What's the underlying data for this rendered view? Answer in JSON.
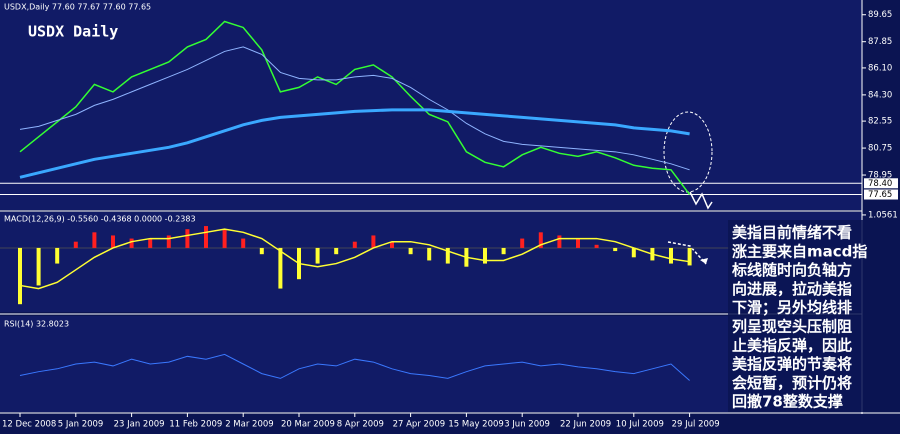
{
  "chart_data": [
    {
      "type": "line",
      "title": "USDX Daily",
      "header": "USDX,Daily 77.60 77.67 77.60 77.65",
      "categories": [
        "12 Dec 2008",
        null,
        null,
        "5 Jan 2009",
        null,
        null,
        "23 Jan 2009",
        null,
        null,
        "11 Feb 2009",
        null,
        null,
        "2 Mar 2009",
        null,
        null,
        "20 Mar 2009",
        null,
        null,
        "8 Apr 2009",
        null,
        null,
        "27 Apr 2009",
        null,
        null,
        "15 May 2009",
        null,
        null,
        "3 Jun 2009",
        null,
        null,
        "22 Jun 2009",
        null,
        null,
        "10 Jul 2009",
        null,
        null,
        "29 Jul 2009"
      ],
      "series": [
        {
          "color": "#33ff33",
          "values": [
            80.5,
            81.5,
            82.5,
            83.5,
            85.0,
            84.5,
            85.5,
            86.0,
            86.5,
            87.5,
            88.0,
            89.2,
            88.8,
            87.3,
            84.5,
            84.8,
            85.5,
            85.0,
            86.0,
            86.3,
            85.5,
            84.2,
            83.0,
            82.5,
            80.5,
            79.8,
            79.5,
            80.3,
            80.8,
            80.4,
            80.2,
            80.5,
            80.1,
            79.6,
            79.4,
            79.3,
            77.65
          ]
        },
        {
          "color": "#8fb4ff",
          "values": [
            82.0,
            82.2,
            82.6,
            83.0,
            83.6,
            84.0,
            84.5,
            85.0,
            85.5,
            86.0,
            86.6,
            87.2,
            87.5,
            87.0,
            85.8,
            85.4,
            85.3,
            85.3,
            85.5,
            85.6,
            85.4,
            84.8,
            84.0,
            83.3,
            82.4,
            81.7,
            81.2,
            81.0,
            80.9,
            80.8,
            80.7,
            80.6,
            80.5,
            80.3,
            80.0,
            79.7,
            79.3
          ]
        },
        {
          "color": "#3aa8ff",
          "values": [
            78.8,
            79.1,
            79.4,
            79.7,
            80.0,
            80.2,
            80.4,
            80.6,
            80.8,
            81.1,
            81.5,
            81.9,
            82.3,
            82.6,
            82.8,
            82.9,
            83.0,
            83.1,
            83.2,
            83.25,
            83.3,
            83.3,
            83.3,
            83.2,
            83.1,
            83.0,
            82.9,
            82.8,
            82.7,
            82.6,
            82.5,
            82.4,
            82.3,
            82.1,
            82.0,
            81.9,
            81.7
          ]
        }
      ],
      "ylim": [
        76.75,
        90.5
      ],
      "yticks": [
        89.65,
        87.85,
        {
          "value": 86.1,
          "label": "86.10"
        },
        {
          "value": 84.3,
          "label": "84.30"
        },
        82.55,
        80.75,
        78.95
      ],
      "price_labels": [
        {
          "value": 78.4,
          "label": "78.40"
        },
        77.65
      ]
    },
    {
      "type": "macd",
      "title": "MACD(12,26,9) -0.5560 -0.4368 0.0000 -0.2383",
      "histogram": [
        -1.8,
        -1.2,
        -0.5,
        0.2,
        0.5,
        0.4,
        0.3,
        0.3,
        0.4,
        0.6,
        0.7,
        0.6,
        0.3,
        -0.2,
        -1.3,
        -1.0,
        -0.5,
        -0.2,
        0.2,
        0.4,
        0.2,
        -0.2,
        -0.4,
        -0.5,
        -0.6,
        -0.5,
        -0.2,
        0.3,
        0.5,
        0.4,
        0.3,
        0.1,
        -0.1,
        -0.3,
        -0.4,
        -0.5,
        -0.56
      ],
      "signal": [
        -1.2,
        -1.3,
        -1.1,
        -0.7,
        -0.3,
        0,
        0.2,
        0.3,
        0.3,
        0.4,
        0.5,
        0.6,
        0.5,
        0.3,
        -0.1,
        -0.5,
        -0.6,
        -0.5,
        -0.3,
        0,
        0.2,
        0.2,
        0.1,
        -0.1,
        -0.3,
        -0.4,
        -0.4,
        -0.2,
        0.1,
        0.3,
        0.3,
        0.3,
        0.2,
        0,
        -0.2,
        -0.35,
        -0.44
      ],
      "pos_color": "#ff2020",
      "neg_color": "#ffff33",
      "signal_color": "#ffff33",
      "ylim": [
        -2.05,
        1.15
      ],
      "yticks": [
        1.0561
      ]
    },
    {
      "type": "line",
      "title": "RSI(14) 32.8023",
      "series": [
        {
          "color": "#3a78ff",
          "values": [
            38,
            42,
            45,
            50,
            52,
            48,
            55,
            50,
            52,
            58,
            55,
            60,
            50,
            40,
            35,
            45,
            50,
            48,
            55,
            52,
            45,
            40,
            38,
            35,
            42,
            48,
            50,
            52,
            48,
            50,
            47,
            45,
            42,
            40,
            45,
            50,
            32.8
          ]
        }
      ],
      "ylim": [
        0,
        100
      ]
    }
  ],
  "annotation": {
    "lines": [
      "美指目前情绪不看",
      "涨主要来自macd指",
      "标线随时向负轴方",
      "向进展，拉动美指",
      "下滑；另外均线排",
      "列呈现空头压制阻",
      "止美指反弹，因此",
      "美指反弹的节奏将",
      "会短暂，预计仍将",
      "回撤78整数支撑"
    ]
  }
}
